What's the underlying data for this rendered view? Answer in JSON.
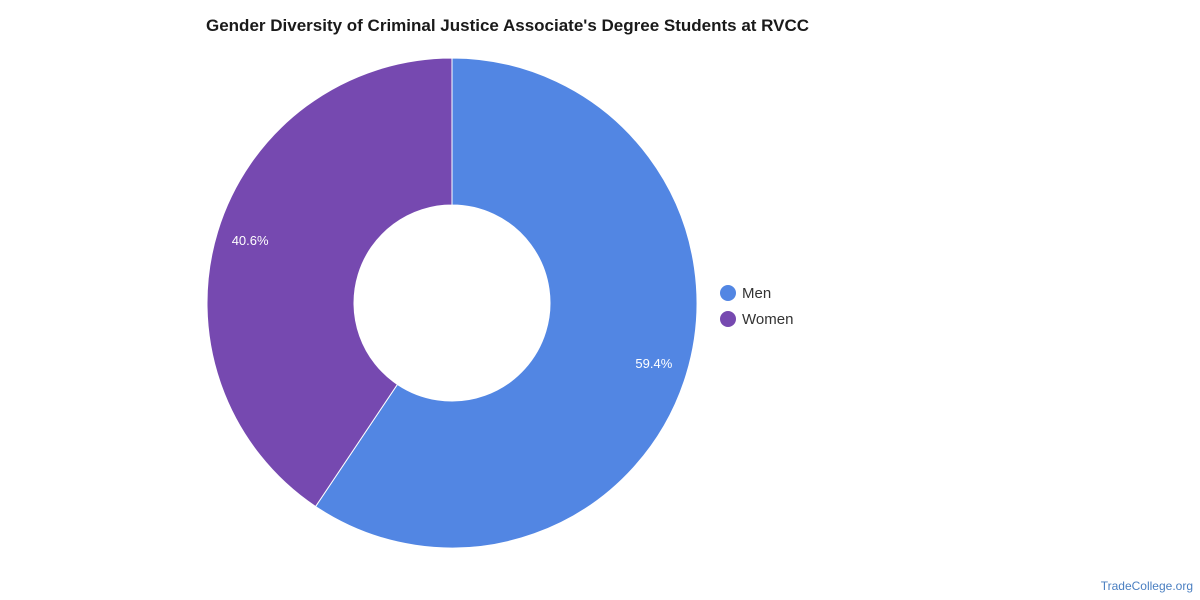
{
  "chart_data": {
    "type": "pie",
    "title": "Gender Diversity of Criminal Justice Associate's Degree Students at RVCC",
    "categories": [
      "Men",
      "Women"
    ],
    "values": [
      59.4,
      40.6
    ],
    "labels": [
      "59.4%",
      "40.6%"
    ],
    "colors": [
      "#5286e3",
      "#7649b0"
    ],
    "donut": true,
    "legend_position": "right"
  },
  "source": "TradeCollege.org"
}
